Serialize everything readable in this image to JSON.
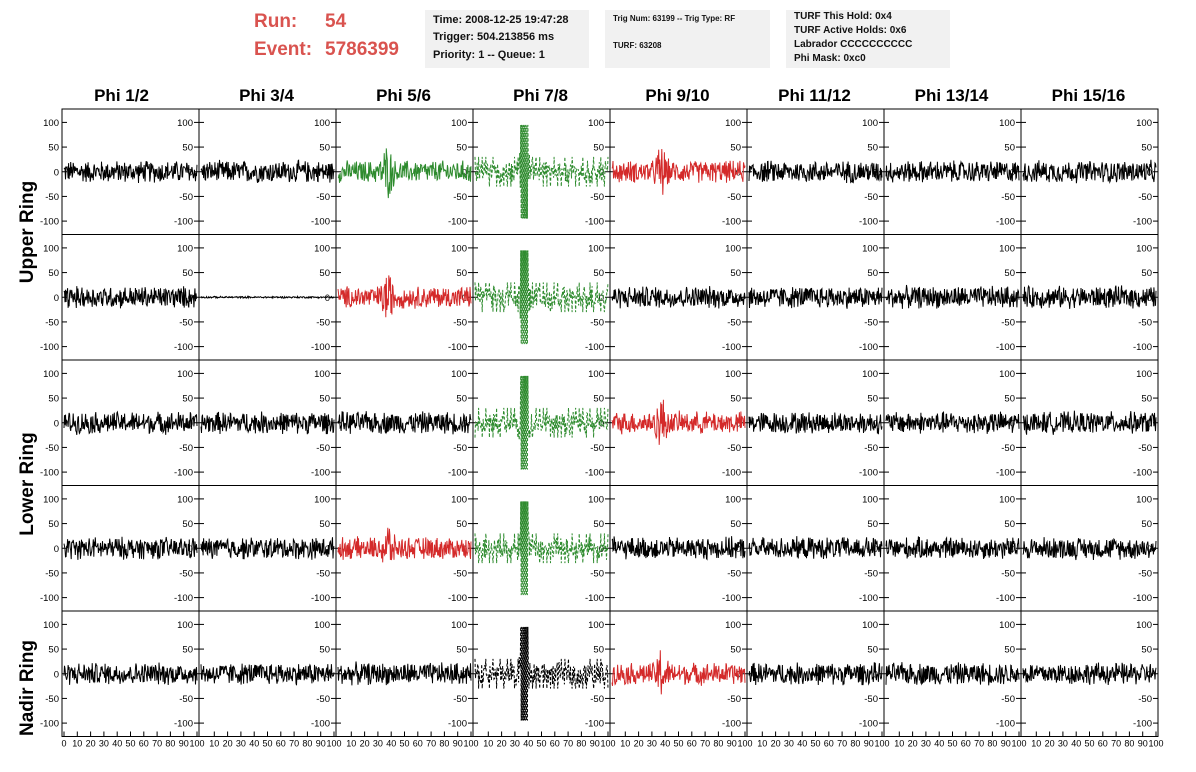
{
  "header": {
    "run_label": "Run:",
    "run_value": "54",
    "event_label": "Event:",
    "event_value": "5786399",
    "time_box": {
      "time": "Time: 2008-12-25 19:47:28",
      "trigger": "Trigger: 504.213856 ms",
      "priority": "Priority: 1 -- Queue: 1"
    },
    "trig_box": {
      "trig": "Trig Num: 63199 -- Trig Type: RF",
      "turf": "TURF: 63208"
    },
    "turf_box": {
      "hold": "TURF This Hold: 0x4",
      "active": "TURF Active Holds: 0x6",
      "labrador": "Labrador CCCCCCCCCC",
      "phimask": "Phi Mask: 0xc0"
    }
  },
  "colors": {
    "black": "#000000",
    "green": "#2e8b2e",
    "red": "#d42a2a",
    "title_red": "#d9534f"
  },
  "chart_data": {
    "type": "line",
    "columns": [
      "Phi 1/2",
      "Phi 3/4",
      "Phi 5/6",
      "Phi 7/8",
      "Phi 9/10",
      "Phi 11/12",
      "Phi 13/14",
      "Phi 15/16"
    ],
    "ring_labels": [
      {
        "name": "Upper Ring",
        "rows": [
          0,
          1
        ]
      },
      {
        "name": "Lower Ring",
        "rows": [
          2,
          3
        ]
      },
      {
        "name": "Nadir Ring",
        "rows": [
          4
        ]
      }
    ],
    "xlim": [
      0,
      100
    ],
    "x_ticks": [
      "0",
      "10",
      "20",
      "30",
      "40",
      "50",
      "60",
      "70",
      "80",
      "90",
      "100"
    ],
    "ylim": [
      -115,
      115
    ],
    "y_ticks": [
      "100",
      "50",
      "0",
      "-50",
      "-100"
    ],
    "y_tick_values": [
      100,
      50,
      0,
      -50,
      -100
    ],
    "grid": false,
    "panels": [
      [
        "black",
        "black",
        "green",
        "green-dashed",
        "red",
        "black",
        "black",
        "black"
      ],
      [
        "black",
        "flat",
        "red",
        "green-dashed",
        "black",
        "black",
        "black",
        "black"
      ],
      [
        "black",
        "black",
        "black",
        "green-dashed",
        "red",
        "black",
        "black",
        "black"
      ],
      [
        "black",
        "black",
        "red",
        "green-dashed",
        "black",
        "black",
        "black",
        "black"
      ],
      [
        "black",
        "black",
        "black",
        "black-dashed",
        "red",
        "black",
        "black",
        "black"
      ]
    ],
    "waveform_noise_amplitude": 25,
    "pulse_center_x": 37
  }
}
